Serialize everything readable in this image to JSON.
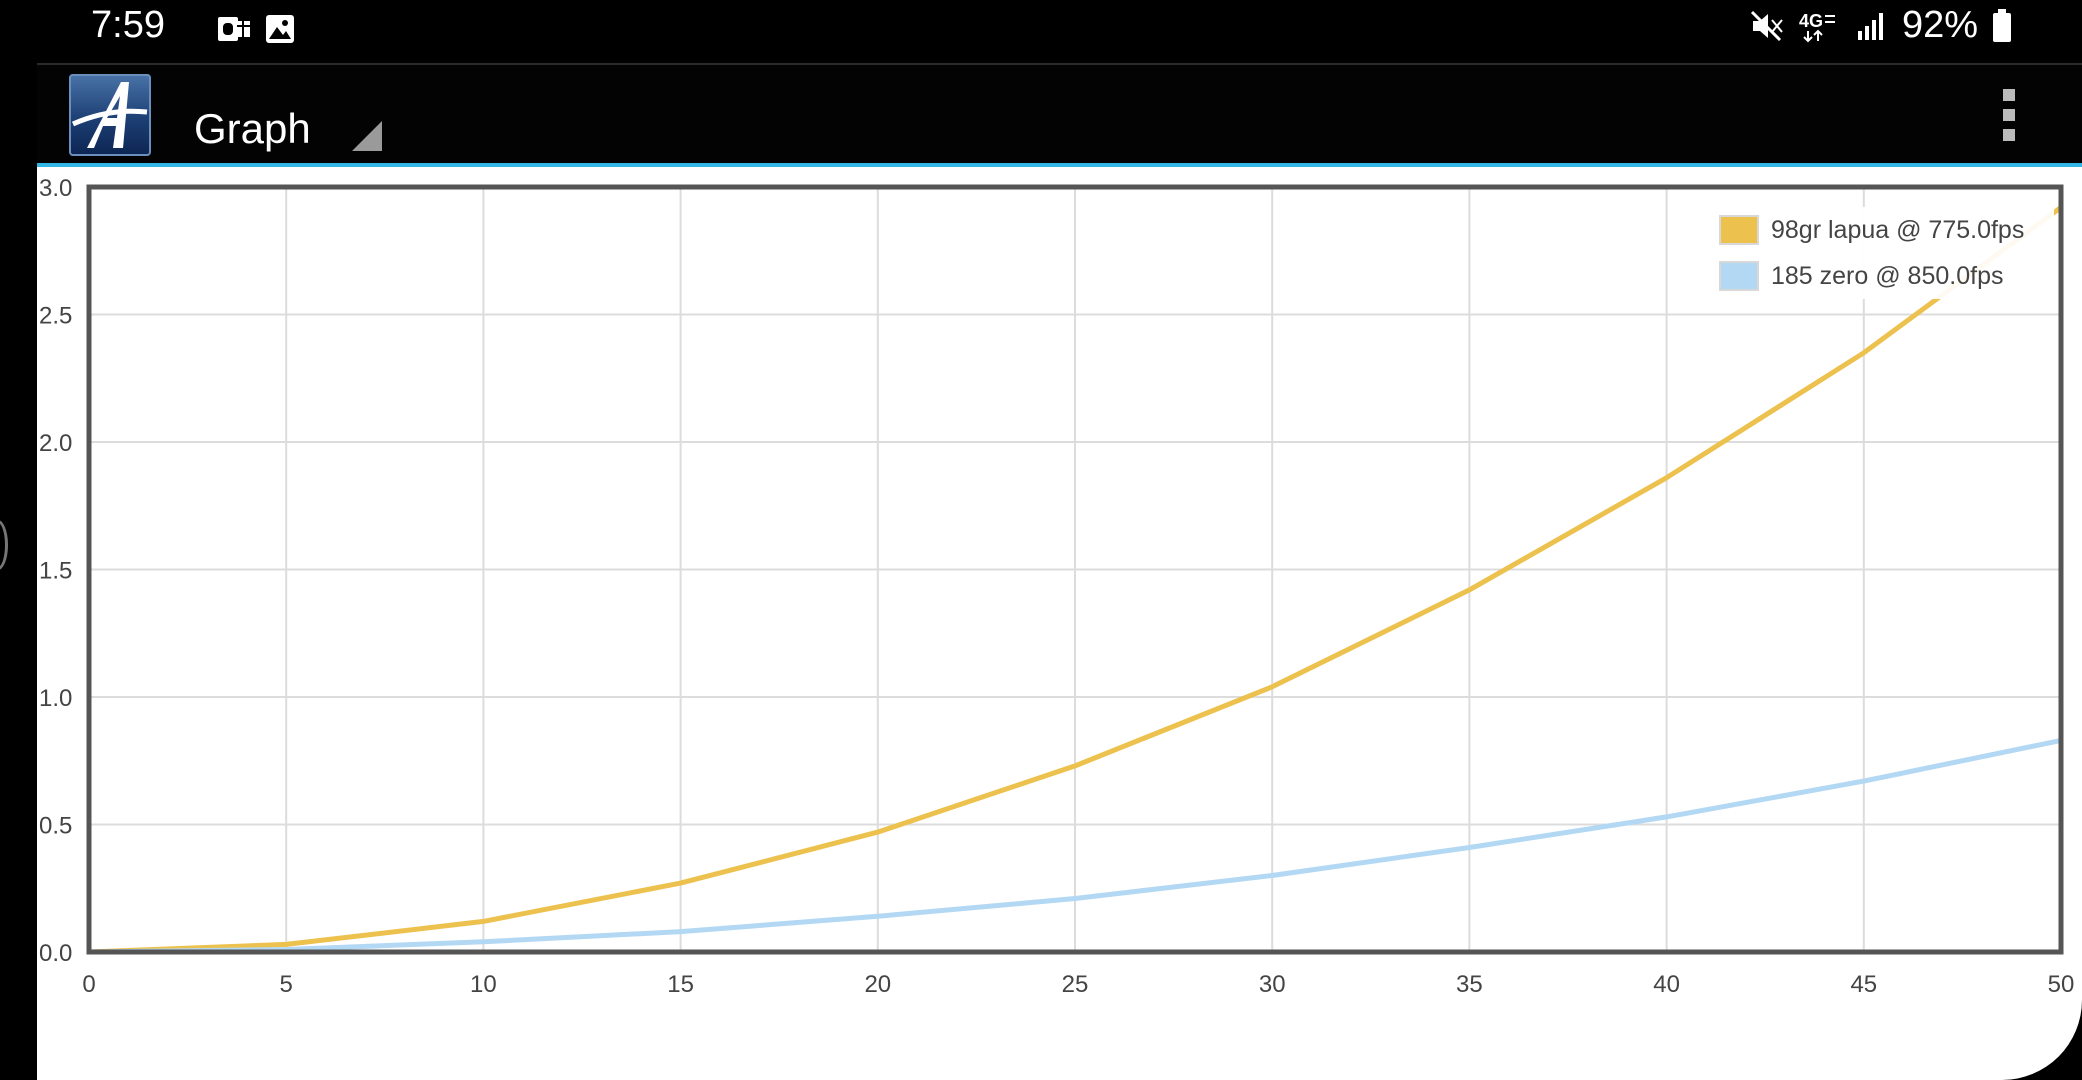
{
  "status_bar": {
    "time": "7:59",
    "battery": "92%",
    "icons": [
      "outlook-icon",
      "gallery-icon",
      "mute-icon",
      "lte-icon",
      "signal-icon",
      "battery-icon"
    ]
  },
  "app_bar": {
    "title": "Graph",
    "logo_icon": "app-logo-icon",
    "menu_icon": "overflow-menu-icon",
    "accent_color": "#33b5e5"
  },
  "chart_data": {
    "type": "line",
    "xlim": [
      0,
      50
    ],
    "ylim": [
      0,
      3.0
    ],
    "x_ticks": [
      "0",
      "5",
      "10",
      "15",
      "20",
      "25",
      "30",
      "35",
      "40",
      "45",
      "50"
    ],
    "y_ticks": [
      "0.0",
      "0.5",
      "1.0",
      "1.5",
      "2.0",
      "2.5",
      "3.0"
    ],
    "grid": true,
    "legend_position": "top-right",
    "series": [
      {
        "name": "98gr lapua @ 775.0fps",
        "color": "#ecc14d",
        "x": [
          0,
          5,
          10,
          15,
          20,
          25,
          30,
          35,
          40,
          45,
          50
        ],
        "y": [
          0.0,
          0.03,
          0.12,
          0.27,
          0.47,
          0.73,
          1.04,
          1.42,
          1.86,
          2.35,
          2.92
        ]
      },
      {
        "name": "185 zero @ 850.0fps",
        "color": "#b3d8f4",
        "x": [
          0,
          5,
          10,
          15,
          20,
          25,
          30,
          35,
          40,
          45,
          50
        ],
        "y": [
          0.0,
          0.01,
          0.04,
          0.08,
          0.14,
          0.21,
          0.3,
          0.41,
          0.53,
          0.67,
          0.83
        ]
      }
    ]
  }
}
